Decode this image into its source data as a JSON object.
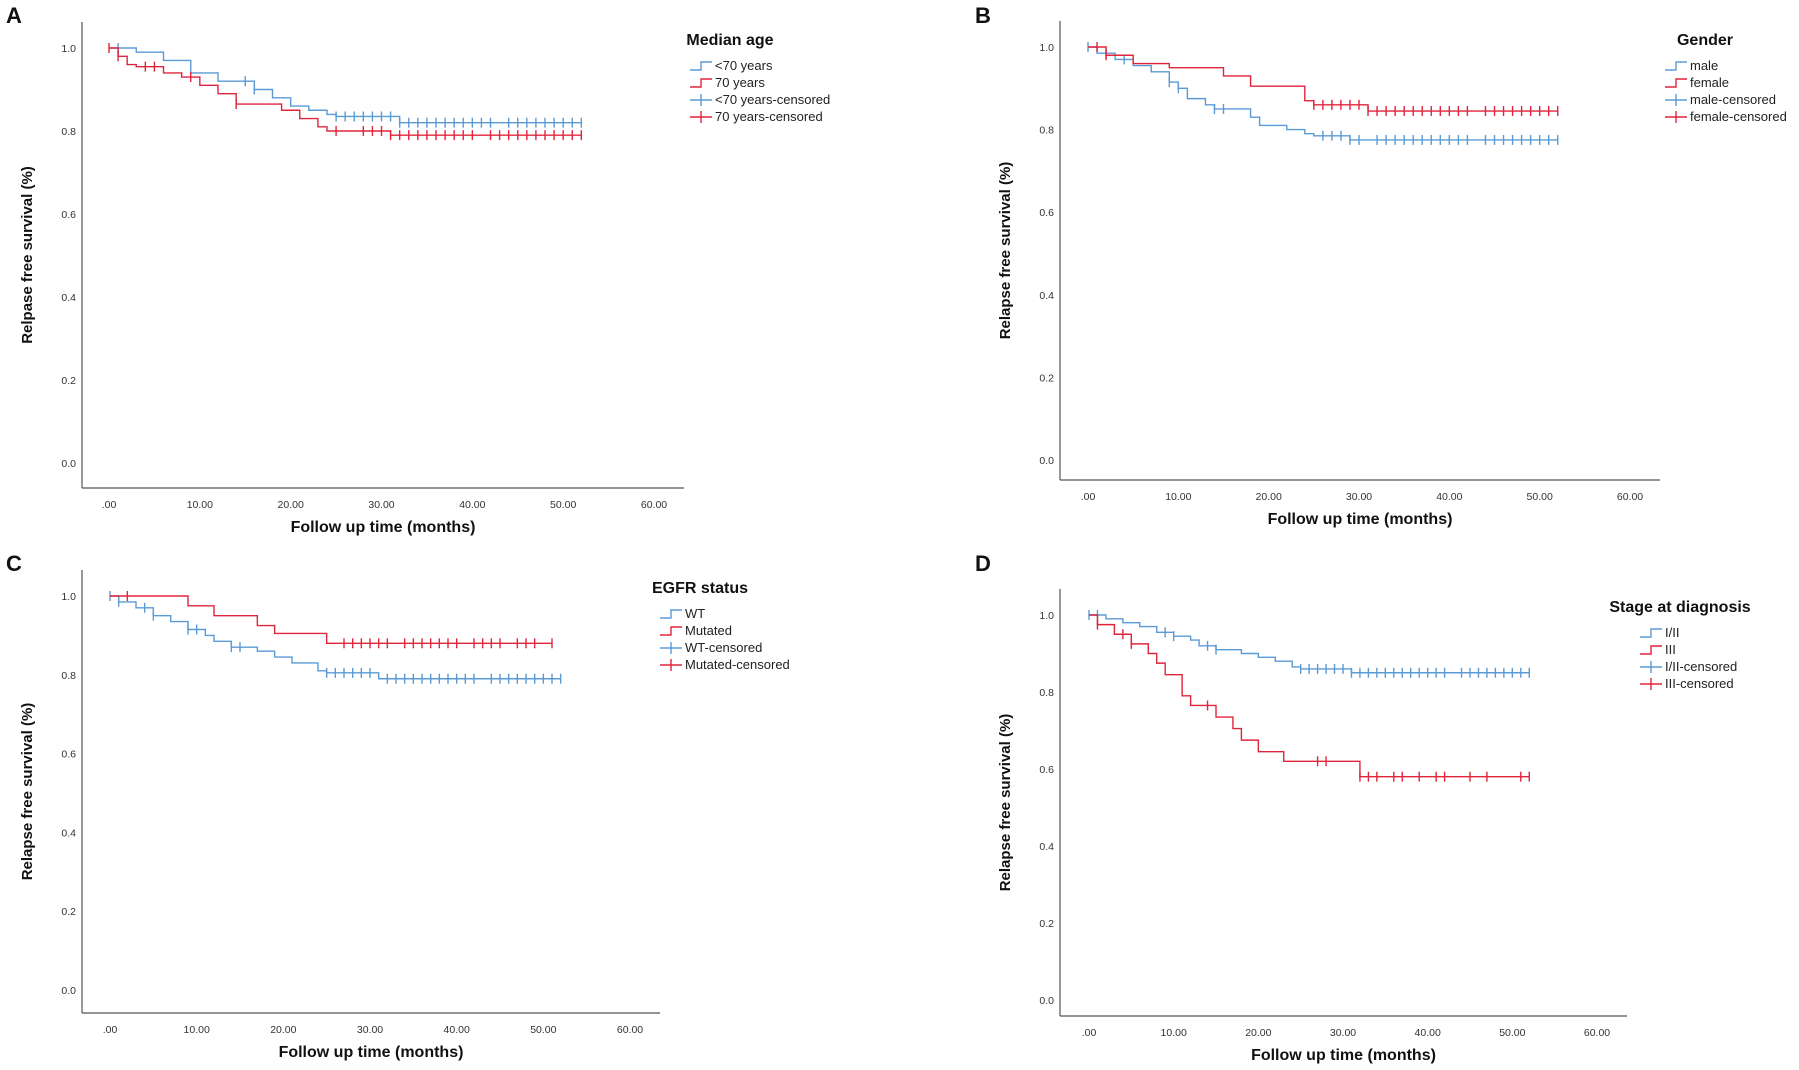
{
  "colors": {
    "blue": "#5b9bd5",
    "red": "#e0243c"
  },
  "chart_data": [
    {
      "panel": "A",
      "type": "line",
      "subtype": "kaplan-meier",
      "xlabel": "Follow up time (months)",
      "ylabel": "Relpase free survival (%)",
      "xticks": [
        ".00",
        "10.00",
        "20.00",
        "30.00",
        "40.00",
        "50.00",
        "60.00"
      ],
      "yticks": [
        "0.0",
        "0.2",
        "0.4",
        "0.6",
        "0.8",
        "1.0"
      ],
      "xlim": [
        0,
        60
      ],
      "ylim": [
        0,
        1
      ],
      "legend_title": "Median age",
      "legend": [
        "<70 years",
        "70  years",
        "<70 years-censored",
        "70 years-censored"
      ],
      "series": [
        {
          "name": "<70 years",
          "color": "blue",
          "steps": [
            [
              0,
              1.0
            ],
            [
              3,
              0.99
            ],
            [
              6,
              0.97
            ],
            [
              9,
              0.94
            ],
            [
              12,
              0.92
            ],
            [
              16,
              0.9
            ],
            [
              18,
              0.88
            ],
            [
              20,
              0.86
            ],
            [
              22,
              0.85
            ],
            [
              24,
              0.84
            ],
            [
              25,
              0.835
            ],
            [
              32,
              0.82
            ],
            [
              52,
              0.82
            ]
          ],
          "censored": [
            1,
            15,
            16,
            25,
            26,
            27,
            28,
            29,
            30,
            31,
            32,
            33,
            34,
            35,
            36,
            37,
            38,
            39,
            40,
            41,
            42,
            44,
            45,
            46,
            47,
            48,
            49,
            50,
            51,
            52
          ]
        },
        {
          "name": "70  years",
          "color": "red",
          "steps": [
            [
              0,
              1.0
            ],
            [
              1,
              0.98
            ],
            [
              2,
              0.96
            ],
            [
              3,
              0.955
            ],
            [
              6,
              0.94
            ],
            [
              8,
              0.93
            ],
            [
              10,
              0.91
            ],
            [
              12,
              0.89
            ],
            [
              14,
              0.865
            ],
            [
              19,
              0.85
            ],
            [
              21,
              0.83
            ],
            [
              23,
              0.81
            ],
            [
              24,
              0.8
            ],
            [
              31,
              0.79
            ],
            [
              52,
              0.79
            ]
          ],
          "censored": [
            0,
            1,
            4,
            5,
            9,
            14,
            25,
            28,
            29,
            30,
            31,
            32,
            33,
            34,
            35,
            36,
            37,
            38,
            39,
            40,
            42,
            43,
            44,
            45,
            46,
            47,
            48,
            49,
            50,
            51,
            52
          ]
        }
      ]
    },
    {
      "panel": "B",
      "type": "line",
      "subtype": "kaplan-meier",
      "xlabel": "Follow up time (months)",
      "ylabel": "Relapse free survival (%)",
      "xticks": [
        ".00",
        "10.00",
        "20.00",
        "30.00",
        "40.00",
        "50.00",
        "60.00"
      ],
      "yticks": [
        "0.0",
        "0.2",
        "0.4",
        "0.6",
        "0.8",
        "1.0"
      ],
      "xlim": [
        0,
        60
      ],
      "ylim": [
        0,
        1
      ],
      "legend_title": "Gender",
      "legend": [
        "male",
        "female",
        "male-censored",
        "female-censored"
      ],
      "series": [
        {
          "name": "male",
          "color": "blue",
          "steps": [
            [
              0,
              1.0
            ],
            [
              1,
              0.985
            ],
            [
              3,
              0.97
            ],
            [
              5,
              0.955
            ],
            [
              7,
              0.94
            ],
            [
              9,
              0.915
            ],
            [
              10,
              0.9
            ],
            [
              11,
              0.875
            ],
            [
              13,
              0.86
            ],
            [
              14,
              0.85
            ],
            [
              18,
              0.83
            ],
            [
              19,
              0.81
            ],
            [
              22,
              0.8
            ],
            [
              24,
              0.79
            ],
            [
              25,
              0.785
            ],
            [
              29,
              0.775
            ],
            [
              52,
              0.775
            ]
          ],
          "censored": [
            0,
            2,
            4,
            9,
            10,
            14,
            15,
            26,
            27,
            28,
            29,
            30,
            32,
            33,
            34,
            35,
            36,
            37,
            38,
            39,
            40,
            41,
            42,
            44,
            45,
            46,
            47,
            48,
            49,
            50,
            51,
            52
          ]
        },
        {
          "name": "female",
          "color": "red",
          "steps": [
            [
              0,
              1.0
            ],
            [
              2,
              0.98
            ],
            [
              5,
              0.96
            ],
            [
              9,
              0.95
            ],
            [
              15,
              0.93
            ],
            [
              18,
              0.905
            ],
            [
              24,
              0.87
            ],
            [
              25,
              0.86
            ],
            [
              31,
              0.845
            ],
            [
              52,
              0.845
            ]
          ],
          "censored": [
            1,
            2,
            25,
            26,
            27,
            28,
            29,
            30,
            31,
            32,
            33,
            34,
            35,
            36,
            37,
            38,
            39,
            40,
            41,
            42,
            44,
            45,
            46,
            47,
            48,
            49,
            50,
            51,
            52
          ]
        }
      ]
    },
    {
      "panel": "C",
      "type": "line",
      "subtype": "kaplan-meier",
      "xlabel": "Follow up time (months)",
      "ylabel": "Relapse free survival (%)",
      "xticks": [
        ".00",
        "10.00",
        "20.00",
        "30.00",
        "40.00",
        "50.00",
        "60.00"
      ],
      "yticks": [
        "0.0",
        "0.2",
        "0.4",
        "0.6",
        "0.8",
        "1.0"
      ],
      "xlim": [
        0,
        60
      ],
      "ylim": [
        0,
        1
      ],
      "legend_title": "EGFR status",
      "legend": [
        "WT",
        "Mutated",
        "WT-censored",
        "Mutated-censored"
      ],
      "series": [
        {
          "name": "WT",
          "color": "blue",
          "steps": [
            [
              0,
              1.0
            ],
            [
              1,
              0.985
            ],
            [
              3,
              0.97
            ],
            [
              5,
              0.95
            ],
            [
              7,
              0.935
            ],
            [
              9,
              0.915
            ],
            [
              11,
              0.9
            ],
            [
              12,
              0.885
            ],
            [
              14,
              0.87
            ],
            [
              17,
              0.86
            ],
            [
              19,
              0.845
            ],
            [
              21,
              0.83
            ],
            [
              24,
              0.81
            ],
            [
              25,
              0.805
            ],
            [
              31,
              0.79
            ],
            [
              52,
              0.79
            ]
          ],
          "censored": [
            0,
            1,
            4,
            5,
            9,
            10,
            14,
            15,
            25,
            26,
            27,
            28,
            29,
            30,
            32,
            33,
            34,
            35,
            36,
            37,
            38,
            39,
            40,
            41,
            42,
            44,
            45,
            46,
            47,
            48,
            49,
            50,
            51,
            52
          ]
        },
        {
          "name": "Mutated",
          "color": "red",
          "steps": [
            [
              0,
              1.0
            ],
            [
              9,
              0.975
            ],
            [
              12,
              0.95
            ],
            [
              17,
              0.925
            ],
            [
              19,
              0.905
            ],
            [
              25,
              0.88
            ],
            [
              51,
              0.88
            ]
          ],
          "censored": [
            2,
            27,
            28,
            29,
            30,
            31,
            32,
            34,
            35,
            36,
            37,
            38,
            39,
            40,
            42,
            43,
            44,
            45,
            47,
            48,
            49,
            51
          ]
        }
      ]
    },
    {
      "panel": "D",
      "type": "line",
      "subtype": "kaplan-meier",
      "xlabel": "Follow up time (months)",
      "ylabel": "Relapse free survival (%)",
      "xticks": [
        ".00",
        "10.00",
        "20.00",
        "30.00",
        "40.00",
        "50.00",
        "60.00"
      ],
      "yticks": [
        "0.0",
        "0.2",
        "0.4",
        "0.6",
        "0.8",
        "1.0"
      ],
      "xlim": [
        0,
        60
      ],
      "ylim": [
        0,
        1
      ],
      "legend_title": "Stage at diagnosis",
      "legend": [
        "I/II",
        "III",
        "I/II-censored",
        "III-censored"
      ],
      "series": [
        {
          "name": "I/II",
          "color": "blue",
          "steps": [
            [
              0,
              1.0
            ],
            [
              2,
              0.99
            ],
            [
              4,
              0.98
            ],
            [
              6,
              0.97
            ],
            [
              8,
              0.955
            ],
            [
              10,
              0.945
            ],
            [
              12,
              0.935
            ],
            [
              13,
              0.92
            ],
            [
              15,
              0.91
            ],
            [
              18,
              0.9
            ],
            [
              20,
              0.89
            ],
            [
              22,
              0.88
            ],
            [
              24,
              0.865
            ],
            [
              25,
              0.86
            ],
            [
              31,
              0.85
            ],
            [
              52,
              0.85
            ]
          ],
          "censored": [
            0,
            1,
            9,
            10,
            14,
            15,
            25,
            26,
            27,
            28,
            29,
            30,
            31,
            32,
            33,
            34,
            35,
            36,
            37,
            38,
            39,
            40,
            41,
            42,
            44,
            45,
            46,
            47,
            48,
            49,
            50,
            51,
            52
          ]
        },
        {
          "name": "III",
          "color": "red",
          "steps": [
            [
              0,
              1.0
            ],
            [
              1,
              0.975
            ],
            [
              3,
              0.95
            ],
            [
              5,
              0.925
            ],
            [
              7,
              0.9
            ],
            [
              8,
              0.875
            ],
            [
              9,
              0.845
            ],
            [
              11,
              0.79
            ],
            [
              12,
              0.765
            ],
            [
              15,
              0.735
            ],
            [
              17,
              0.705
            ],
            [
              18,
              0.675
            ],
            [
              20,
              0.645
            ],
            [
              23,
              0.62
            ],
            [
              32,
              0.58
            ],
            [
              52,
              0.58
            ]
          ],
          "censored": [
            1,
            4,
            5,
            14,
            27,
            28,
            32,
            33,
            34,
            36,
            37,
            39,
            41,
            42,
            45,
            47,
            51,
            52
          ]
        }
      ]
    }
  ]
}
